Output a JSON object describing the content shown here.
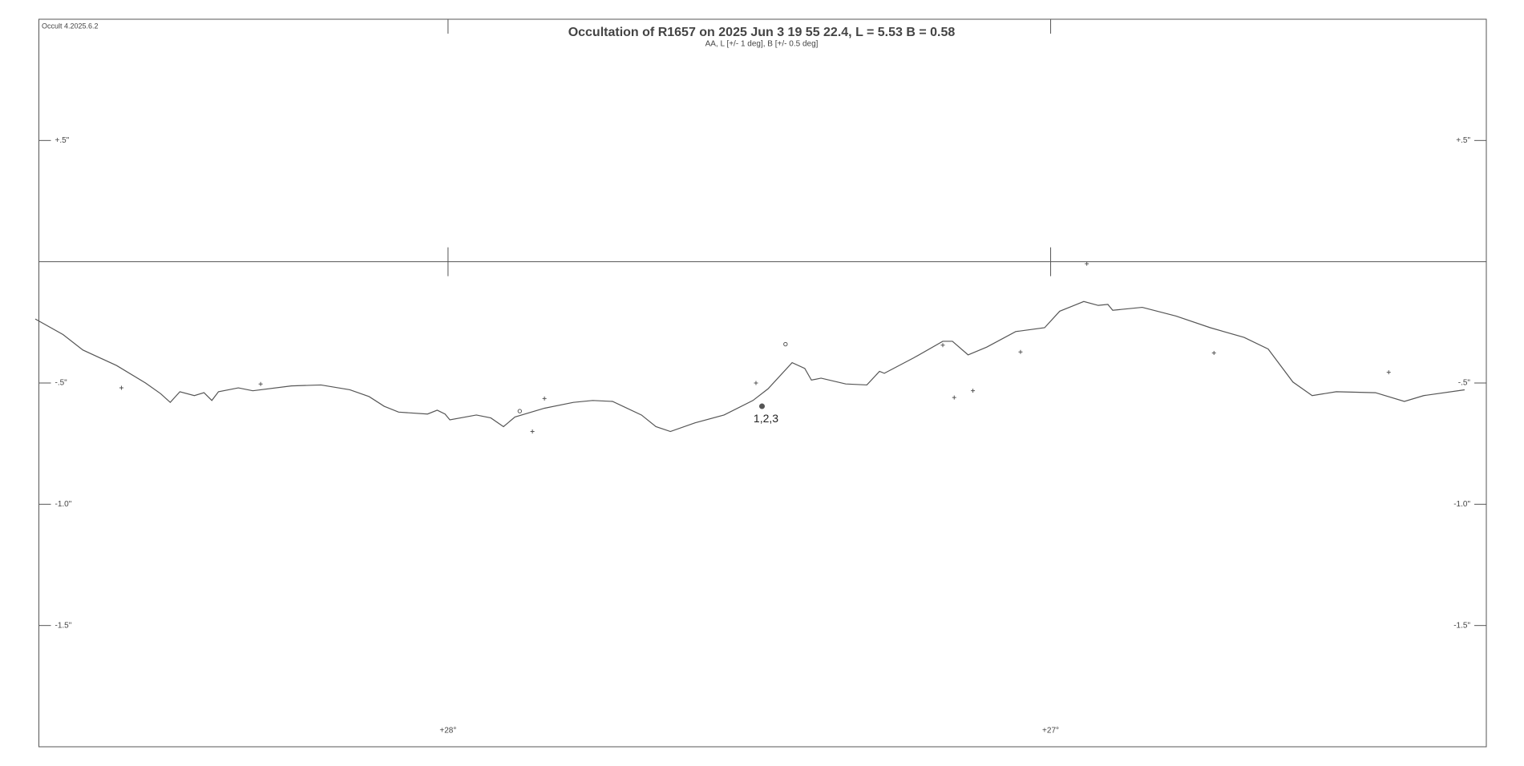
{
  "chart_data": {
    "type": "line",
    "version": "Occult 4.2025.6.2",
    "title": "Occultation of  R1657  on  2025 Jun 3 19 55 22.4,  L = 5.53  B = 0.58",
    "subtitle": "AA, L [+/- 1 deg], B [+/- 0.5 deg]",
    "xlim": [
      28.679,
      26.277
    ],
    "ylim": [
      -2.0,
      1.0
    ],
    "xticks": [
      {
        "value": 28,
        "label": "+28°"
      },
      {
        "value": 27,
        "label": "+27°"
      }
    ],
    "yticks": [
      {
        "value": 0.5,
        "label": "+.5\""
      },
      {
        "value": -0.5,
        "label": "-.5\""
      },
      {
        "value": -1.0,
        "label": "-1.0\""
      },
      {
        "value": -1.5,
        "label": "-1.5\""
      }
    ],
    "series": [
      {
        "marker": "line",
        "color": "#555555",
        "x": [
          28.685,
          28.639,
          28.606,
          28.55,
          28.502,
          28.477,
          28.461,
          28.445,
          28.421,
          28.405,
          28.392,
          28.381,
          28.348,
          28.324,
          28.26,
          28.211,
          28.163,
          28.131,
          28.106,
          28.082,
          28.034,
          28.018,
          28.005,
          27.997,
          27.953,
          27.929,
          27.908,
          27.889,
          27.84,
          27.792,
          27.76,
          27.727,
          27.679,
          27.655,
          27.631,
          27.59,
          27.542,
          27.494,
          27.469,
          27.429,
          27.408,
          27.397,
          27.381,
          27.34,
          27.305,
          27.284,
          27.276,
          27.227,
          27.179,
          27.163,
          27.137,
          27.106,
          27.058,
          27.01,
          26.985,
          26.945,
          26.921,
          26.905,
          26.897,
          26.848,
          26.792,
          26.735,
          26.679,
          26.639,
          26.598,
          26.566,
          26.526,
          26.461,
          26.413,
          26.381,
          26.313
        ],
        "values": [
          -0.236,
          -0.3,
          -0.364,
          -0.428,
          -0.5,
          -0.544,
          -0.58,
          -0.536,
          -0.552,
          -0.54,
          -0.572,
          -0.536,
          -0.52,
          -0.532,
          -0.512,
          -0.508,
          -0.528,
          -0.556,
          -0.596,
          -0.62,
          -0.628,
          -0.612,
          -0.628,
          -0.652,
          -0.632,
          -0.644,
          -0.68,
          -0.64,
          -0.604,
          -0.58,
          -0.572,
          -0.576,
          -0.632,
          -0.68,
          -0.7,
          -0.664,
          -0.632,
          -0.572,
          -0.524,
          -0.416,
          -0.44,
          -0.488,
          -0.48,
          -0.504,
          -0.508,
          -0.452,
          -0.46,
          -0.396,
          -0.328,
          -0.328,
          -0.384,
          -0.352,
          -0.288,
          -0.272,
          -0.204,
          -0.164,
          -0.18,
          -0.176,
          -0.2,
          -0.188,
          -0.224,
          -0.272,
          -0.312,
          -0.36,
          -0.496,
          -0.552,
          -0.536,
          -0.54,
          -0.576,
          -0.552,
          -0.528
        ]
      },
      {
        "marker": "plus",
        "color": "#555555",
        "x": [
          28.542,
          28.311,
          27.84,
          27.86,
          27.489,
          27.179,
          27.16,
          27.129,
          27.05,
          26.94,
          26.729,
          26.439
        ],
        "values": [
          -0.52,
          -0.504,
          -0.564,
          -0.7,
          -0.5,
          -0.344,
          -0.56,
          -0.532,
          -0.372,
          -0.008,
          -0.376,
          -0.456
        ]
      },
      {
        "marker": "circle",
        "color": "#555555",
        "x": [
          27.881,
          27.44
        ],
        "values": [
          -0.616,
          -0.34
        ]
      },
      {
        "marker": "dot",
        "color": "#555555",
        "x": [
          27.479
        ],
        "values": [
          -0.596
        ],
        "value_labels": [
          "1,2,3"
        ]
      }
    ]
  }
}
